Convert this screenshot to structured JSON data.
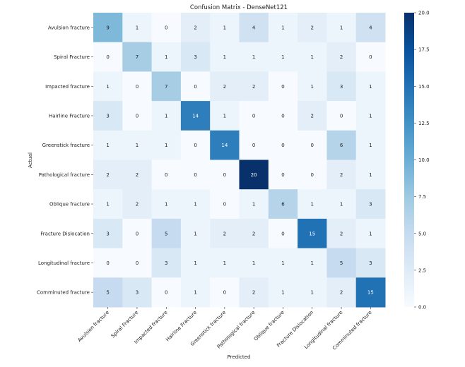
{
  "chart_data": {
    "type": "heatmap",
    "title": "Confusion Matrix - DenseNet121",
    "xlabel": "Predicted",
    "ylabel": "Actual",
    "x_categories": [
      "Avulsion fracture",
      "Spiral Fracture",
      "Impacted fracture",
      "Hairline Fracture",
      "Greenstick fracture",
      "Pathological fracture",
      "Oblique fracture",
      "Fracture Dislocation",
      "Longitudinal fracture",
      "Comminuted fracture"
    ],
    "y_categories": [
      "Avulsion fracture",
      "Spiral Fracture",
      "Impacted fracture",
      "Hairline Fracture",
      "Greenstick fracture",
      "Pathological fracture",
      "Oblique fracture",
      "Fracture Dislocation",
      "Longitudinal fracture",
      "Comminuted fracture"
    ],
    "values": [
      [
        9,
        1,
        0,
        2,
        1,
        4,
        1,
        2,
        1,
        4
      ],
      [
        0,
        7,
        1,
        3,
        1,
        1,
        1,
        1,
        2,
        0
      ],
      [
        1,
        0,
        7,
        0,
        2,
        2,
        0,
        1,
        3,
        1
      ],
      [
        3,
        0,
        1,
        14,
        1,
        0,
        0,
        2,
        0,
        1
      ],
      [
        1,
        1,
        1,
        0,
        14,
        0,
        0,
        0,
        6,
        1
      ],
      [
        2,
        2,
        0,
        0,
        0,
        20,
        0,
        0,
        2,
        1
      ],
      [
        1,
        2,
        1,
        1,
        0,
        1,
        6,
        1,
        1,
        3
      ],
      [
        3,
        0,
        5,
        1,
        2,
        2,
        0,
        15,
        2,
        1
      ],
      [
        0,
        0,
        3,
        1,
        1,
        1,
        1,
        1,
        5,
        3
      ],
      [
        5,
        3,
        0,
        1,
        0,
        2,
        1,
        1,
        2,
        15
      ]
    ],
    "colormap": "Blues",
    "colorbar": {
      "range": [
        0,
        20
      ],
      "ticks": [
        "0.0",
        "2.5",
        "5.0",
        "7.5",
        "10.0",
        "12.5",
        "15.0",
        "17.5",
        "20.0"
      ]
    }
  }
}
